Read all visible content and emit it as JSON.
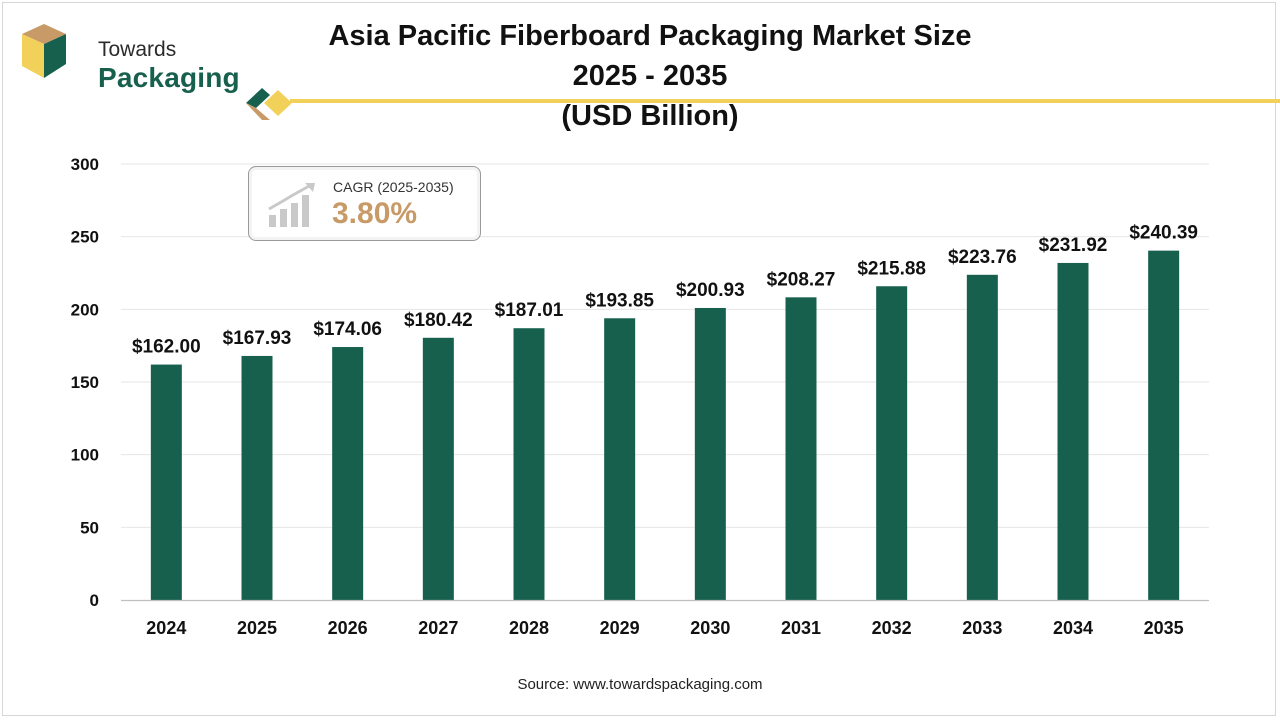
{
  "brand": {
    "line1": "Towards",
    "line2": "Packaging"
  },
  "header": {
    "title_line1": "Asia Pacific Fiberboard Packaging Market Size 2025 - 2035",
    "title_line2": "(USD Billion)"
  },
  "cagr": {
    "label": "CAGR (2025-2035)",
    "value": "3.80%"
  },
  "source": "Source: www.towardspackaging.com",
  "colors": {
    "bar": "#17604e",
    "accent": "#f2d15a",
    "cagr_value": "#c79a67"
  },
  "chart_data": {
    "type": "bar",
    "title": "Asia Pacific Fiberboard Packaging Market Size 2025 - 2035 (USD Billion)",
    "categories": [
      "2024",
      "2025",
      "2026",
      "2027",
      "2028",
      "2029",
      "2030",
      "2031",
      "2032",
      "2033",
      "2034",
      "2035"
    ],
    "values": [
      162.0,
      167.93,
      174.06,
      180.42,
      187.01,
      193.85,
      200.93,
      208.27,
      215.88,
      223.76,
      231.92,
      240.39
    ],
    "value_labels": [
      "$162.00",
      "$167.93",
      "$174.06",
      "$180.42",
      "$187.01",
      "$193.85",
      "$200.93",
      "$208.27",
      "$215.88",
      "$223.76",
      "$231.92",
      "$240.39"
    ],
    "yticks": [
      0,
      50,
      100,
      150,
      200,
      250,
      300
    ],
    "ylim": [
      0,
      300
    ],
    "xlabel": "",
    "ylabel": "",
    "grid": true,
    "legend": "none"
  }
}
